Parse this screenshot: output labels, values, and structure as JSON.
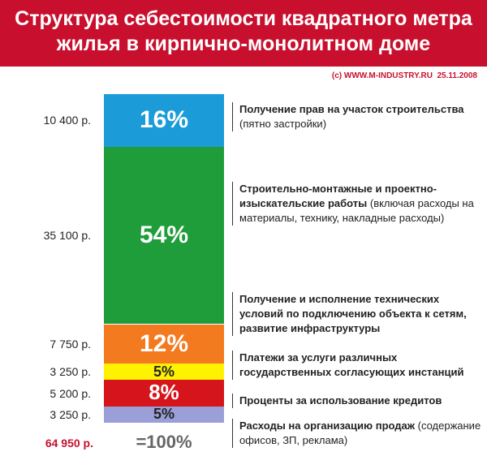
{
  "chart_data": {
    "type": "stacked-bar",
    "title": "Структура себестоимости квадратного метра жилья в кирпично-монолитном доме",
    "source": "(c) WWW.M-INDUSTRY.RU  25.11.2008",
    "series": [
      {
        "name": "Получение прав на участок строительства",
        "note": "(пятно застройки)",
        "color": "#1b9bd7",
        "values": [
          16
        ],
        "value_labels": [
          "16%"
        ],
        "amounts": [
          10400
        ],
        "amount_labels": [
          "10 400 р."
        ]
      },
      {
        "name": "Строительно-монтажные и проектно-изыскательские работы",
        "note": "(включая расходы на материалы, технику, накладные расходы)",
        "color": "#1f9d3b",
        "values": [
          54
        ],
        "value_labels": [
          "54%"
        ],
        "amounts": [
          35100
        ],
        "amount_labels": [
          "35 100 р."
        ]
      },
      {
        "name": "Получение и исполнение технических условий по подключению объекта к сетям, развитие инфраструктуры",
        "color": "#f47a1f",
        "values": [
          12
        ],
        "value_labels": [
          "12%"
        ],
        "amounts": [
          7750
        ],
        "amount_labels": [
          "7 750 р."
        ]
      },
      {
        "name": "Платежи за услуги различных государственных согласующих инстанций",
        "color": "#fff200",
        "values": [
          5
        ],
        "value_labels": [
          "5%"
        ],
        "amounts": [
          3250
        ],
        "amount_labels": [
          "3 250 р."
        ]
      },
      {
        "name": "Проценты за использование кредитов",
        "color": "#d6141b",
        "values": [
          8
        ],
        "value_labels": [
          "8%"
        ],
        "amounts": [
          5200
        ],
        "amount_labels": [
          "5 200 р."
        ]
      },
      {
        "name": "Расходы на организацию продаж",
        "note": "(содержание офисов, ЗП, реклама)",
        "color": "#9a9fd8",
        "values": [
          5
        ],
        "value_labels": [
          "5%"
        ],
        "amounts": [
          3250
        ],
        "amount_labels": [
          "3 250 р."
        ]
      }
    ],
    "total": 64950,
    "total_label": "64 950 р.",
    "total_percent": 100,
    "total_percent_label": "=100%"
  }
}
